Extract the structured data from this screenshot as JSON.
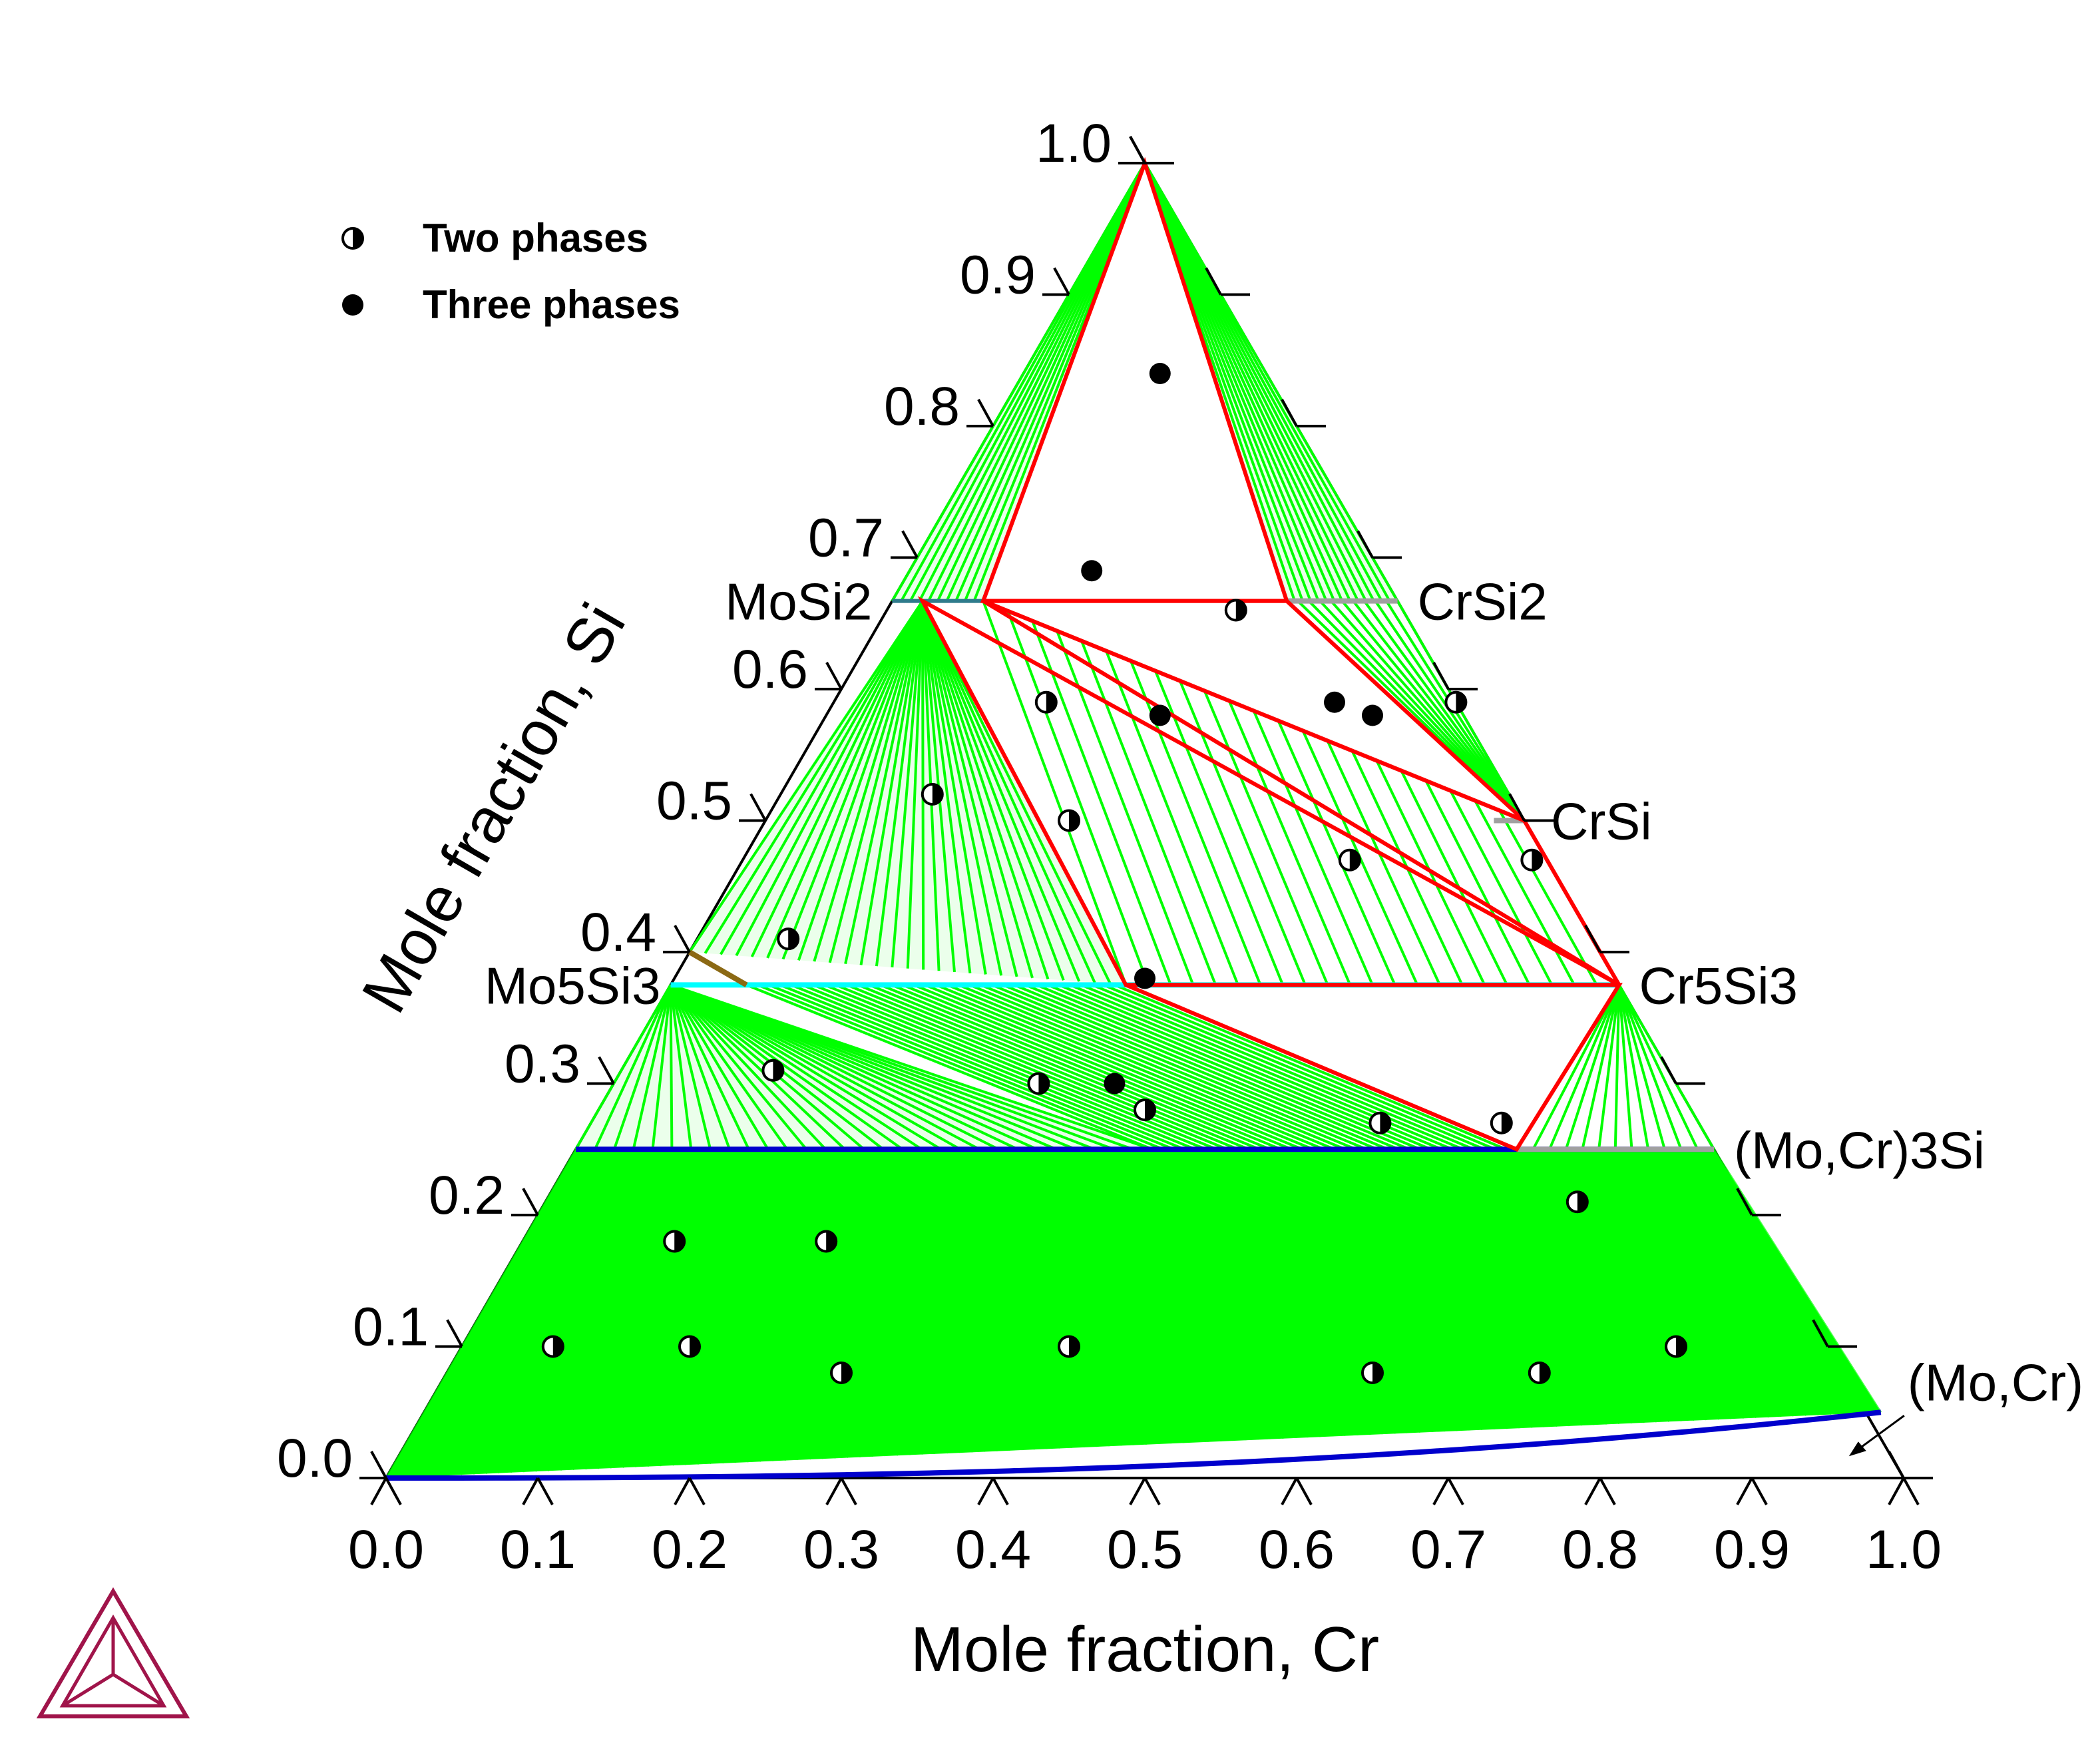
{
  "chart_data": {
    "type": "scatter",
    "title": "",
    "xlabel": "Mole fraction, Cr",
    "ylabel": "Mole fraction, Si",
    "xlim": [
      0,
      1
    ],
    "ylim": [
      0,
      1
    ],
    "ticks": [
      "0.0",
      "0.1",
      "0.2",
      "0.3",
      "0.4",
      "0.5",
      "0.6",
      "0.7",
      "0.8",
      "0.9",
      "1.0"
    ],
    "legend": [
      {
        "label": "Two phases",
        "marker": "half-filled-circle"
      },
      {
        "label": "Three phases",
        "marker": "filled-circle"
      }
    ],
    "legend_position": "top-left",
    "phases": [
      {
        "name": "MoSi2",
        "cr": 0.0,
        "si": 0.667
      },
      {
        "name": "CrSi2",
        "cr": 0.333,
        "si": 0.667
      },
      {
        "name": "CrSi",
        "cr": 0.5,
        "si": 0.5
      },
      {
        "name": "Cr5Si3",
        "cr": 0.625,
        "si": 0.375
      },
      {
        "name": "Mo5Si3",
        "cr": 0.0,
        "si": 0.375
      },
      {
        "name": "(Mo,Cr)3Si",
        "cr": 0.75,
        "si": 0.25
      },
      {
        "name": "(Mo,Cr)",
        "cr": 0.96,
        "si": 0.05
      }
    ],
    "colors": {
      "tie_lines": "#00ff00",
      "three_phase": "#ff0000",
      "phase_boundary": "#0000cc",
      "cyan_boundary": "#00ffff",
      "brown_boundary": "#8b6914",
      "gray_segment": "#a0a0a0",
      "logo": "#a0144a"
    },
    "two_phase_points": [
      {
        "cr": 0.06,
        "si": 0.1
      },
      {
        "cr": 0.15,
        "si": 0.1
      },
      {
        "cr": 0.26,
        "si": 0.08
      },
      {
        "cr": 0.4,
        "si": 0.1
      },
      {
        "cr": 0.61,
        "si": 0.08
      },
      {
        "cr": 0.72,
        "si": 0.08
      },
      {
        "cr": 0.8,
        "si": 0.1
      },
      {
        "cr": 0.1,
        "si": 0.18
      },
      {
        "cr": 0.2,
        "si": 0.18
      },
      {
        "cr": 0.68,
        "si": 0.21
      },
      {
        "cr": 0.1,
        "si": 0.31
      },
      {
        "cr": 0.28,
        "si": 0.3
      },
      {
        "cr": 0.36,
        "si": 0.28
      },
      {
        "cr": 0.52,
        "si": 0.27
      },
      {
        "cr": 0.6,
        "si": 0.27
      },
      {
        "cr": 0.06,
        "si": 0.41
      },
      {
        "cr": 0.1,
        "si": 0.52
      },
      {
        "cr": 0.2,
        "si": 0.5
      },
      {
        "cr": 0.4,
        "si": 0.47
      },
      {
        "cr": 0.52,
        "si": 0.47
      },
      {
        "cr": 0.14,
        "si": 0.59
      },
      {
        "cr": 0.41,
        "si": 0.59
      },
      {
        "cr": 0.23,
        "si": 0.66
      }
    ],
    "three_phase_points": [
      {
        "cr": 0.09,
        "si": 0.84
      },
      {
        "cr": 0.12,
        "si": 0.69
      },
      {
        "cr": 0.22,
        "si": 0.58
      },
      {
        "cr": 0.33,
        "si": 0.59
      },
      {
        "cr": 0.36,
        "si": 0.58
      },
      {
        "cr": 0.33,
        "si": 0.3
      },
      {
        "cr": 0.31,
        "si": 0.38
      }
    ],
    "three_phase_triangles": [
      [
        {
          "cr": 0.0,
          "si": 1.0
        },
        {
          "cr": 0.06,
          "si": 0.667
        },
        {
          "cr": 0.26,
          "si": 0.667
        }
      ],
      [
        {
          "cr": 0.06,
          "si": 0.667
        },
        {
          "cr": 0.26,
          "si": 0.667
        },
        {
          "cr": 0.5,
          "si": 0.5
        }
      ],
      [
        {
          "cr": 0.06,
          "si": 0.667
        },
        {
          "cr": 0.5,
          "si": 0.5
        },
        {
          "cr": 0.625,
          "si": 0.375
        }
      ],
      [
        {
          "cr": 0.02,
          "si": 0.667
        },
        {
          "cr": 0.3,
          "si": 0.375
        },
        {
          "cr": 0.625,
          "si": 0.375
        }
      ],
      [
        {
          "cr": 0.3,
          "si": 0.375
        },
        {
          "cr": 0.625,
          "si": 0.375
        },
        {
          "cr": 0.62,
          "si": 0.25
        }
      ]
    ],
    "regions": [
      {
        "kind": "fan",
        "apex": {
          "cr": 0.0,
          "si": 1.0
        },
        "from": [
          {
            "cr": 0.0,
            "si": 0.667
          },
          {
            "cr": 0.06,
            "si": 0.667
          }
        ],
        "count": 10
      },
      {
        "kind": "fan",
        "apex": {
          "cr": 0.0,
          "si": 1.0
        },
        "from": [
          {
            "cr": 0.26,
            "si": 0.667
          },
          {
            "cr": 0.333,
            "si": 0.667
          }
        ],
        "count": 14
      },
      {
        "kind": "fan",
        "apex": {
          "cr": 0.02,
          "si": 0.667
        },
        "from": [
          {
            "cr": 0.0,
            "si": 0.4
          },
          {
            "cr": 0.3,
            "si": 0.375
          }
        ],
        "count": 28
      },
      {
        "kind": "band",
        "from": [
          {
            "cr": 0.06,
            "si": 0.667
          },
          {
            "cr": 0.5,
            "si": 0.5
          }
        ],
        "to": [
          {
            "cr": 0.3,
            "si": 0.375
          },
          {
            "cr": 0.625,
            "si": 0.375
          }
        ],
        "count": 22
      },
      {
        "kind": "band",
        "from": [
          {
            "cr": 0.26,
            "si": 0.667
          },
          {
            "cr": 0.333,
            "si": 0.667
          }
        ],
        "to": [
          {
            "cr": 0.5,
            "si": 0.5
          },
          {
            "cr": 0.5,
            "si": 0.5
          }
        ],
        "count": 10
      },
      {
        "kind": "band",
        "from": [
          {
            "cr": 0.5,
            "si": 0.5
          },
          {
            "cr": 0.5,
            "si": 0.5
          }
        ],
        "to": [
          {
            "cr": 0.625,
            "si": 0.375
          },
          {
            "cr": 0.625,
            "si": 0.375
          }
        ],
        "count": 4
      },
      {
        "kind": "fan",
        "apex": {
          "cr": 0.0,
          "si": 0.375
        },
        "from": [
          {
            "cr": 0.0,
            "si": 0.25
          },
          {
            "cr": 0.38,
            "si": 0.25
          }
        ],
        "count": 30
      },
      {
        "kind": "band",
        "from": [
          {
            "cr": 0.05,
            "si": 0.375
          },
          {
            "cr": 0.3,
            "si": 0.375
          }
        ],
        "to": [
          {
            "cr": 0.38,
            "si": 0.25
          },
          {
            "cr": 0.62,
            "si": 0.25
          }
        ],
        "count": 34
      },
      {
        "kind": "band",
        "from": [
          {
            "cr": 0.625,
            "si": 0.375
          },
          {
            "cr": 0.625,
            "si": 0.375
          }
        ],
        "to": [
          {
            "cr": 0.62,
            "si": 0.25
          },
          {
            "cr": 0.75,
            "si": 0.25
          }
        ],
        "count": 12
      },
      {
        "kind": "band",
        "from": [
          {
            "cr": 0.0,
            "si": 0.25
          },
          {
            "cr": 0.75,
            "si": 0.25
          }
        ],
        "to": [
          {
            "cr": 0.0,
            "si": 0.0
          },
          {
            "cr": 0.96,
            "si": 0.05
          }
        ],
        "count": 120
      }
    ]
  }
}
